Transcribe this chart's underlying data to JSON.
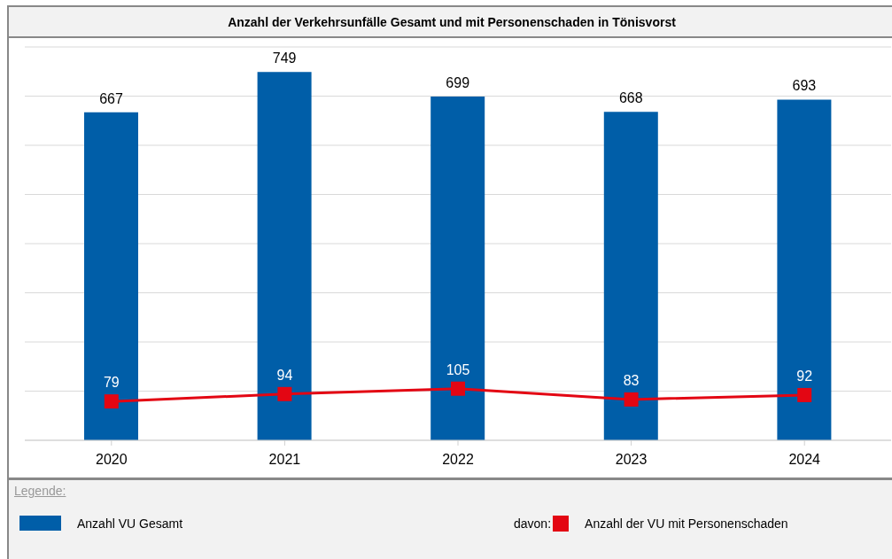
{
  "chart_data": {
    "type": "bar",
    "title": "Anzahl der Verkehrsunfälle Gesamt und mit Personenschaden in Tönisvorst",
    "categories": [
      "2020",
      "2021",
      "2022",
      "2023",
      "2024"
    ],
    "series": [
      {
        "name": "Anzahl VU Gesamt",
        "color": "#005ea8",
        "values": [
          667,
          749,
          699,
          668,
          693
        ]
      },
      {
        "name": "Anzahl der VU mit Personenschaden",
        "type": "line",
        "color": "#e30613",
        "values": [
          79,
          94,
          105,
          83,
          92
        ]
      }
    ],
    "ylim": [
      0,
      800
    ],
    "tick_labels": "x",
    "grid": "y",
    "data_labels": true,
    "marker": "square",
    "line_style": "solid",
    "legend": "bottom",
    "legend_title": "Legende:",
    "annotations": [
      "davon:"
    ]
  }
}
